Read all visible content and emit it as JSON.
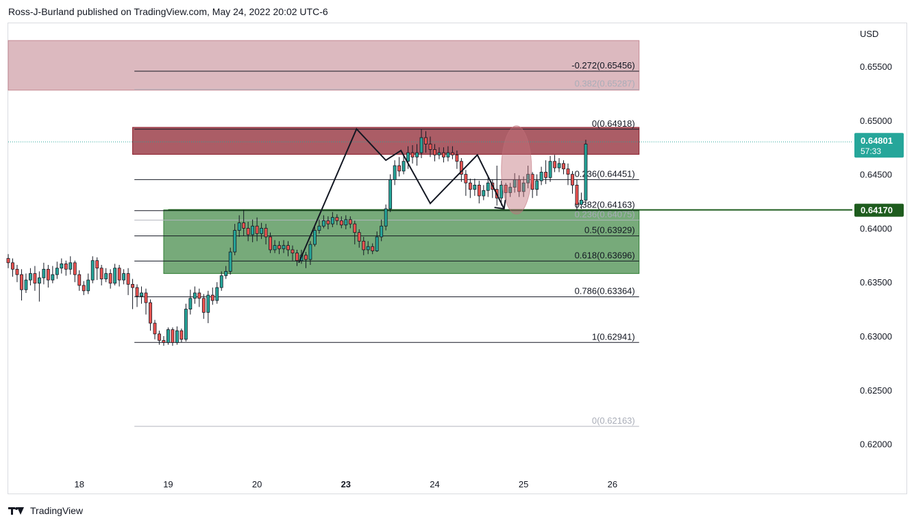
{
  "header": {
    "text": "Ross-J-Burland published on TradingView.com, May 24, 2022 20:02 UTC-6"
  },
  "footer": {
    "brand": "TradingView"
  },
  "chart_data": {
    "type": "candlestick",
    "currency": "USD",
    "ylim": [
      0.6175,
      0.659
    ],
    "xlim": [
      17.2,
      26.7
    ],
    "y_ticks": [
      "0.62000",
      "0.62500",
      "0.63000",
      "0.63500",
      "0.64000",
      "0.64500",
      "0.65000",
      "0.65500"
    ],
    "x_ticks": [
      {
        "x": 18,
        "label": "18",
        "bold": false
      },
      {
        "x": 19,
        "label": "19",
        "bold": false
      },
      {
        "x": 20,
        "label": "20",
        "bold": false
      },
      {
        "x": 21,
        "label": "23",
        "bold": true
      },
      {
        "x": 22,
        "label": "24",
        "bold": false
      },
      {
        "x": 23,
        "label": "25",
        "bold": false
      },
      {
        "x": 24,
        "label": "26",
        "bold": false
      }
    ],
    "current_price": {
      "label": "0.64801",
      "countdown": "57:33",
      "value": 0.64801,
      "color": "#26a69a"
    },
    "support_level": {
      "label": "0.64170",
      "value": 0.6417,
      "color": "#1e5c1e"
    },
    "zones": [
      {
        "name": "upper-resistance-zone",
        "y_top": 0.6574,
        "y_bottom": 0.6528,
        "x_start": 17.2,
        "x_end": 24.3,
        "color": "#c58a94",
        "opacity": 0.6
      },
      {
        "name": "resistance-zone",
        "y_top": 0.64935,
        "y_bottom": 0.64685,
        "x_start": 18.6,
        "x_end": 24.3,
        "color": "#8b1e2b",
        "opacity": 0.72
      },
      {
        "name": "support-zone",
        "y_top": 0.6417,
        "y_bottom": 0.6358,
        "x_start": 18.95,
        "x_end": 24.3,
        "color": "#2e7d32",
        "opacity": 0.65
      }
    ],
    "fib_levels": [
      {
        "label": "-0.272(0.65456)",
        "value": 0.65456,
        "faded": false
      },
      {
        "label": "0.382(0.65287)",
        "value": 0.65287,
        "faded": true
      },
      {
        "label": "0(0.64918)",
        "value": 0.64918,
        "faded": false
      },
      {
        "label": "0.236(0.64451)",
        "value": 0.64451,
        "faded": false
      },
      {
        "label": "0.382(0.64163)",
        "value": 0.64163,
        "faded": false
      },
      {
        "label": "0.236(0.64075)",
        "value": 0.64075,
        "faded": true
      },
      {
        "label": "0.5(0.63929)",
        "value": 0.63929,
        "faded": false
      },
      {
        "label": "0.618(0.63696)",
        "value": 0.63696,
        "faded": false
      },
      {
        "label": "0.786(0.63364)",
        "value": 0.63364,
        "faded": false
      },
      {
        "label": "1(0.62941)",
        "value": 0.62941,
        "faded": false
      },
      {
        "label": "0(0.62163)",
        "value": 0.62163,
        "faded": true
      }
    ],
    "fib_x_start": 18.62,
    "fib_x_end": 24.3,
    "pattern_path": [
      [
        20.47,
        0.6368
      ],
      [
        21.12,
        0.6492
      ],
      [
        21.45,
        0.6463
      ],
      [
        21.62,
        0.6472
      ],
      [
        21.95,
        0.6423
      ],
      [
        22.48,
        0.6468
      ],
      [
        22.78,
        0.6418
      ]
    ],
    "pattern_arrow_tip": [
      22.78,
      0.6418
    ],
    "highlight_ellipse": {
      "cx": 22.92,
      "cy": 0.6454,
      "rx": 0.17,
      "ry": 0.0041,
      "color": "#c0707a",
      "opacity": 0.45
    },
    "bullish_color": "#26a69a",
    "bearish_color": "#ef5350",
    "candles": [
      [
        17.2,
        0.6372,
        0.6368,
        0.6376,
        0.6363
      ],
      [
        17.25,
        0.6368,
        0.6362,
        0.6372,
        0.6355
      ],
      [
        17.3,
        0.6362,
        0.6357,
        0.6366,
        0.635
      ],
      [
        17.35,
        0.6357,
        0.6343,
        0.6362,
        0.6333
      ],
      [
        17.4,
        0.6343,
        0.6352,
        0.6358,
        0.634
      ],
      [
        17.45,
        0.6352,
        0.6358,
        0.6363,
        0.6347
      ],
      [
        17.5,
        0.6358,
        0.6349,
        0.6365,
        0.6342
      ],
      [
        17.55,
        0.6349,
        0.6354,
        0.636,
        0.6332
      ],
      [
        17.6,
        0.6354,
        0.6362,
        0.6368,
        0.6348
      ],
      [
        17.65,
        0.6362,
        0.6352,
        0.6366,
        0.6345
      ],
      [
        17.7,
        0.6352,
        0.6357,
        0.6365,
        0.6349
      ],
      [
        17.75,
        0.6357,
        0.6363,
        0.6369,
        0.6353
      ],
      [
        17.8,
        0.6363,
        0.6367,
        0.6372,
        0.6358
      ],
      [
        17.85,
        0.6367,
        0.6362,
        0.637,
        0.6356
      ],
      [
        17.9,
        0.6362,
        0.6368,
        0.6374,
        0.6357
      ],
      [
        17.95,
        0.6368,
        0.6357,
        0.637,
        0.635
      ],
      [
        18.0,
        0.6357,
        0.6347,
        0.6361,
        0.6342
      ],
      [
        18.05,
        0.6347,
        0.6342,
        0.6351,
        0.6338
      ],
      [
        18.1,
        0.6342,
        0.6352,
        0.6358,
        0.6339
      ],
      [
        18.15,
        0.6352,
        0.637,
        0.6374,
        0.6349
      ],
      [
        18.2,
        0.637,
        0.6363,
        0.6373,
        0.6352
      ],
      [
        18.25,
        0.6363,
        0.6353,
        0.6366,
        0.6347
      ],
      [
        18.3,
        0.6353,
        0.6358,
        0.6363,
        0.635
      ],
      [
        18.35,
        0.6358,
        0.6349,
        0.6362,
        0.6344
      ],
      [
        18.4,
        0.6349,
        0.6363,
        0.6367,
        0.6347
      ],
      [
        18.45,
        0.6363,
        0.6352,
        0.6366,
        0.6346
      ],
      [
        18.5,
        0.6352,
        0.6358,
        0.6362,
        0.6348
      ],
      [
        18.55,
        0.6358,
        0.6348,
        0.6363,
        0.6338
      ],
      [
        18.6,
        0.6348,
        0.6345,
        0.6353,
        0.6325
      ],
      [
        18.65,
        0.6345,
        0.6337,
        0.6348,
        0.6327
      ],
      [
        18.7,
        0.6337,
        0.634,
        0.6346,
        0.633
      ],
      [
        18.75,
        0.634,
        0.6331,
        0.6344,
        0.632
      ],
      [
        18.8,
        0.6331,
        0.6312,
        0.6334,
        0.6305
      ],
      [
        18.85,
        0.6312,
        0.6302,
        0.6315,
        0.6297
      ],
      [
        18.9,
        0.6302,
        0.6296,
        0.6305,
        0.6292
      ],
      [
        18.95,
        0.6296,
        0.6294,
        0.63,
        0.6291
      ],
      [
        19.0,
        0.6294,
        0.6306,
        0.6308,
        0.6292
      ],
      [
        19.05,
        0.6306,
        0.6294,
        0.6308,
        0.6291
      ],
      [
        19.1,
        0.6294,
        0.6305,
        0.6309,
        0.6292
      ],
      [
        19.15,
        0.6305,
        0.6297,
        0.6307,
        0.6294
      ],
      [
        19.2,
        0.6297,
        0.6325,
        0.633,
        0.6295
      ],
      [
        19.25,
        0.6325,
        0.6335,
        0.6343,
        0.632
      ],
      [
        19.3,
        0.6335,
        0.634,
        0.6346,
        0.633
      ],
      [
        19.35,
        0.634,
        0.6335,
        0.6344,
        0.6327
      ],
      [
        19.4,
        0.6335,
        0.6322,
        0.6339,
        0.6316
      ],
      [
        19.45,
        0.6322,
        0.6338,
        0.6342,
        0.6312
      ],
      [
        19.5,
        0.6338,
        0.6333,
        0.6345,
        0.6329
      ],
      [
        19.55,
        0.6333,
        0.6345,
        0.635,
        0.633
      ],
      [
        19.6,
        0.6345,
        0.6356,
        0.636,
        0.6342
      ],
      [
        19.65,
        0.6356,
        0.636,
        0.6365,
        0.6353
      ],
      [
        19.7,
        0.636,
        0.6378,
        0.6382,
        0.6357
      ],
      [
        19.75,
        0.6378,
        0.6398,
        0.6404,
        0.6375
      ],
      [
        19.8,
        0.6398,
        0.6405,
        0.6412,
        0.6392
      ],
      [
        19.85,
        0.6405,
        0.64,
        0.6417,
        0.6393
      ],
      [
        19.9,
        0.64,
        0.6394,
        0.6406,
        0.6388
      ],
      [
        19.95,
        0.6394,
        0.6402,
        0.6408,
        0.6387
      ],
      [
        20.0,
        0.6402,
        0.6395,
        0.641,
        0.6388
      ],
      [
        20.05,
        0.6395,
        0.64,
        0.6405,
        0.639
      ],
      [
        20.1,
        0.64,
        0.6392,
        0.6404,
        0.6385
      ],
      [
        20.15,
        0.6392,
        0.638,
        0.6396,
        0.6377
      ],
      [
        20.2,
        0.638,
        0.6384,
        0.6389,
        0.6377
      ],
      [
        20.25,
        0.6384,
        0.6381,
        0.6388,
        0.6376
      ],
      [
        20.3,
        0.6381,
        0.6384,
        0.6389,
        0.6377
      ],
      [
        20.35,
        0.6384,
        0.638,
        0.6388,
        0.6374
      ],
      [
        20.4,
        0.638,
        0.6377,
        0.6384,
        0.637
      ],
      [
        20.45,
        0.6377,
        0.637,
        0.638,
        0.6365
      ],
      [
        20.5,
        0.637,
        0.6375,
        0.638,
        0.6367
      ],
      [
        20.55,
        0.6375,
        0.6371,
        0.6378,
        0.6363
      ],
      [
        20.6,
        0.6371,
        0.6385,
        0.6388,
        0.6366
      ],
      [
        20.65,
        0.6385,
        0.6398,
        0.6402,
        0.6383
      ],
      [
        20.7,
        0.6398,
        0.6402,
        0.6408,
        0.6395
      ],
      [
        20.75,
        0.6402,
        0.6407,
        0.6412,
        0.64
      ],
      [
        20.8,
        0.6407,
        0.6404,
        0.6411,
        0.6399
      ],
      [
        20.85,
        0.6404,
        0.641,
        0.6415,
        0.6401
      ],
      [
        20.9,
        0.641,
        0.6407,
        0.6413,
        0.6403
      ],
      [
        20.95,
        0.6407,
        0.6403,
        0.6411,
        0.64
      ],
      [
        21.0,
        0.6403,
        0.6408,
        0.6412,
        0.6399
      ],
      [
        21.05,
        0.6408,
        0.6404,
        0.6411,
        0.64
      ],
      [
        21.1,
        0.6404,
        0.6396,
        0.6407,
        0.6385
      ],
      [
        21.15,
        0.6396,
        0.6388,
        0.6399,
        0.6382
      ],
      [
        21.2,
        0.6388,
        0.638,
        0.6392,
        0.6375
      ],
      [
        21.25,
        0.638,
        0.6383,
        0.6388,
        0.6376
      ],
      [
        21.3,
        0.6383,
        0.6379,
        0.6386,
        0.6376
      ],
      [
        21.35,
        0.6379,
        0.6392,
        0.6397,
        0.6378
      ],
      [
        21.4,
        0.6392,
        0.6402,
        0.6408,
        0.6388
      ],
      [
        21.45,
        0.6402,
        0.6418,
        0.6422,
        0.6398
      ],
      [
        21.5,
        0.6418,
        0.6445,
        0.645,
        0.6415
      ],
      [
        21.55,
        0.6445,
        0.6458,
        0.6463,
        0.644
      ],
      [
        21.6,
        0.6458,
        0.6453,
        0.6466,
        0.6448
      ],
      [
        21.65,
        0.6453,
        0.6462,
        0.6468,
        0.645
      ],
      [
        21.7,
        0.6462,
        0.647,
        0.6476,
        0.6455
      ],
      [
        21.75,
        0.647,
        0.6466,
        0.6477,
        0.646
      ],
      [
        21.8,
        0.6466,
        0.647,
        0.6478,
        0.6458
      ],
      [
        21.85,
        0.647,
        0.6484,
        0.6492,
        0.6465
      ],
      [
        21.9,
        0.6484,
        0.6478,
        0.649,
        0.647
      ],
      [
        21.95,
        0.6478,
        0.6473,
        0.6485,
        0.6466
      ],
      [
        22.0,
        0.6473,
        0.6468,
        0.6478,
        0.6462
      ],
      [
        22.05,
        0.6468,
        0.647,
        0.6475,
        0.6464
      ],
      [
        22.1,
        0.647,
        0.6466,
        0.6475,
        0.6461
      ],
      [
        22.15,
        0.6466,
        0.647,
        0.6476,
        0.6462
      ],
      [
        22.2,
        0.647,
        0.6468,
        0.6476,
        0.6464
      ],
      [
        22.25,
        0.6468,
        0.6462,
        0.6472,
        0.6455
      ],
      [
        22.3,
        0.6462,
        0.645,
        0.6465,
        0.6443
      ],
      [
        22.35,
        0.645,
        0.6442,
        0.6454,
        0.643
      ],
      [
        22.4,
        0.6442,
        0.6436,
        0.6446,
        0.6428
      ],
      [
        22.45,
        0.6436,
        0.644,
        0.6446,
        0.643
      ],
      [
        22.5,
        0.644,
        0.643,
        0.6444,
        0.6423
      ],
      [
        22.55,
        0.643,
        0.6435,
        0.644,
        0.6426
      ],
      [
        22.6,
        0.6435,
        0.6442,
        0.6448,
        0.6429
      ],
      [
        22.65,
        0.6442,
        0.6436,
        0.6445,
        0.6428
      ],
      [
        22.7,
        0.6436,
        0.6428,
        0.6458,
        0.6421
      ],
      [
        22.75,
        0.6428,
        0.644,
        0.6444,
        0.6421
      ],
      [
        22.8,
        0.644,
        0.6433,
        0.6442,
        0.6426
      ],
      [
        22.85,
        0.6433,
        0.6438,
        0.6442,
        0.6429
      ],
      [
        22.9,
        0.6438,
        0.6445,
        0.6451,
        0.6433
      ],
      [
        22.95,
        0.6445,
        0.6434,
        0.6449,
        0.6429
      ],
      [
        23.0,
        0.6434,
        0.6442,
        0.6448,
        0.6429
      ],
      [
        23.05,
        0.6442,
        0.645,
        0.6458,
        0.6437
      ],
      [
        23.1,
        0.645,
        0.6436,
        0.6452,
        0.6428
      ],
      [
        23.15,
        0.6436,
        0.6444,
        0.645,
        0.643
      ],
      [
        23.2,
        0.6444,
        0.6452,
        0.6457,
        0.644
      ],
      [
        23.25,
        0.6452,
        0.6447,
        0.6463,
        0.6441
      ],
      [
        23.3,
        0.6447,
        0.6462,
        0.6467,
        0.6443
      ],
      [
        23.35,
        0.6462,
        0.6456,
        0.6468,
        0.6452
      ],
      [
        23.4,
        0.6456,
        0.646,
        0.6465,
        0.6452
      ],
      [
        23.45,
        0.646,
        0.6455,
        0.6463,
        0.645
      ],
      [
        23.5,
        0.6455,
        0.645,
        0.646,
        0.644
      ],
      [
        23.55,
        0.645,
        0.644,
        0.6453,
        0.6432
      ],
      [
        23.6,
        0.644,
        0.6422,
        0.6445,
        0.6416
      ],
      [
        23.65,
        0.6422,
        0.6426,
        0.6433,
        0.6418
      ],
      [
        23.7,
        0.6426,
        0.6478,
        0.6482,
        0.6422
      ]
    ]
  }
}
